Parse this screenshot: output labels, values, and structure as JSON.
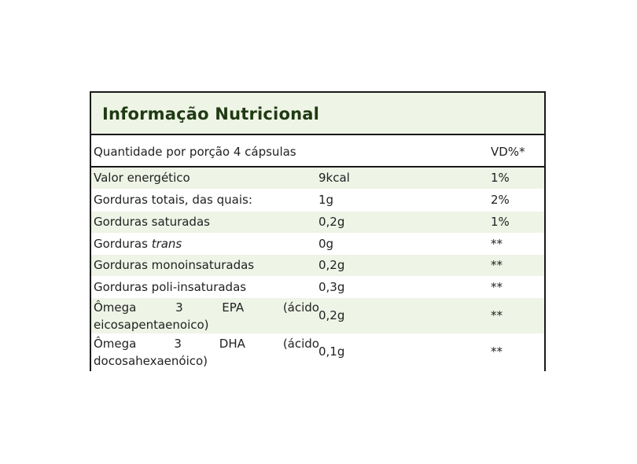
{
  "table": {
    "title": "Informação Nutricional",
    "header": {
      "portion": "Quantidade por porção 4 cápsulas",
      "vd": "VD%*"
    },
    "rows": [
      {
        "name": "Valor energético",
        "amount": "9kcal",
        "vd": "1%"
      },
      {
        "name": "Gorduras totais, das quais:",
        "amount": "1g",
        "vd": "2%"
      },
      {
        "name": "Gorduras saturadas",
        "amount": "0,2g",
        "vd": "1%"
      },
      {
        "name_prefix": "Gorduras",
        "name_italic": "trans",
        "amount": "0g",
        "vd": "**"
      },
      {
        "name": "Gorduras monoinsaturadas",
        "amount": "0,2g",
        "vd": "**"
      },
      {
        "name": "Gorduras poli-insaturadas",
        "amount": "0,3g",
        "vd": "**"
      },
      {
        "name_words": [
          "Ômega",
          "3",
          "EPA",
          "(ácido"
        ],
        "name_line2": "eicosapentaenoico)",
        "amount": "0,2g",
        "vd": "**"
      },
      {
        "name_words": [
          "Ômega",
          "3",
          "DHA",
          "(ácido"
        ],
        "name_line2": "docosahexaenóico)",
        "amount": "0,1g",
        "vd": "**"
      }
    ]
  }
}
